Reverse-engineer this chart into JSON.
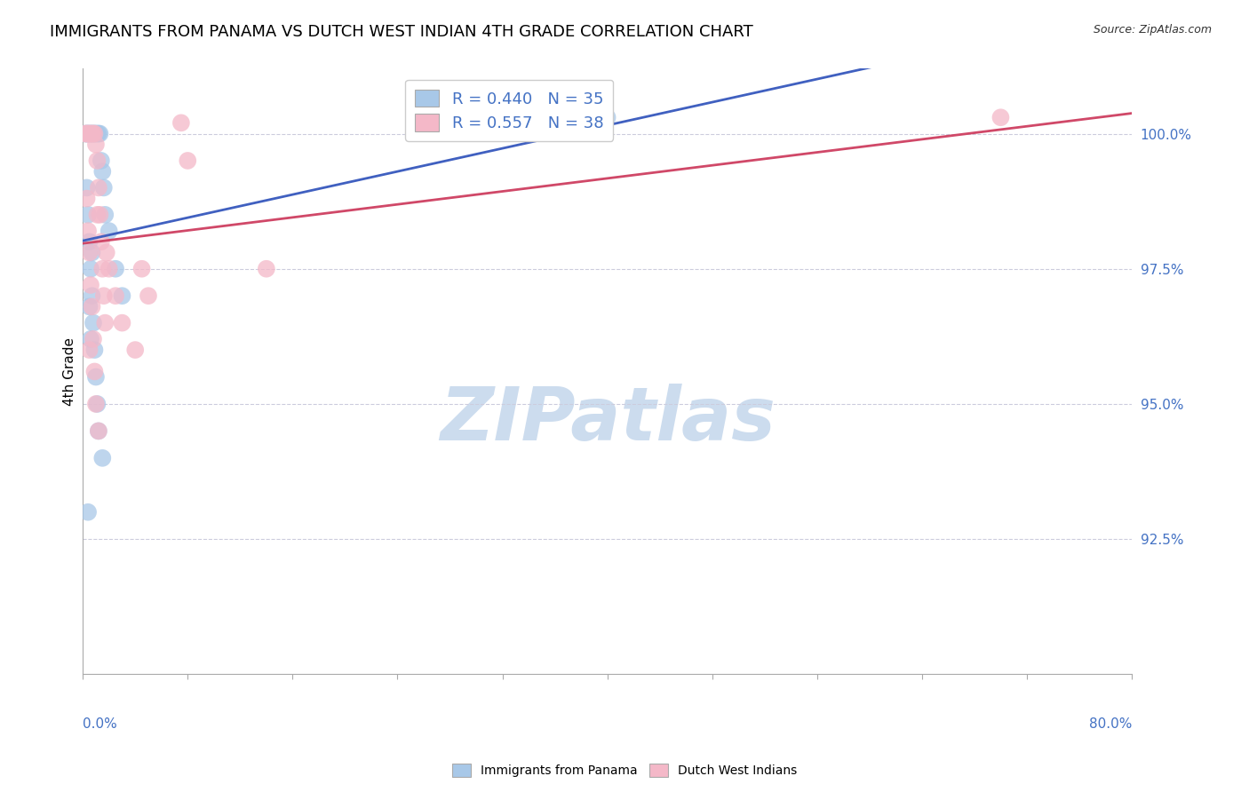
{
  "title": "IMMIGRANTS FROM PANAMA VS DUTCH WEST INDIAN 4TH GRADE CORRELATION CHART",
  "source": "Source: ZipAtlas.com",
  "ylabel": "4th Grade",
  "xlim": [
    0.0,
    80.0
  ],
  "ylim": [
    90.0,
    101.2
  ],
  "yticks": [
    92.5,
    95.0,
    97.5,
    100.0
  ],
  "xticks": [
    0.0,
    8.0,
    16.0,
    24.0,
    32.0,
    40.0,
    48.0,
    56.0,
    64.0,
    72.0,
    80.0
  ],
  "blue_R": 0.44,
  "blue_N": 35,
  "pink_R": 0.557,
  "pink_N": 38,
  "blue_color": "#a8c8e8",
  "pink_color": "#f4b8c8",
  "blue_line_color": "#4060c0",
  "pink_line_color": "#d04868",
  "axis_label_color": "#4472c4",
  "title_color": "#000000",
  "title_fontsize": 13,
  "axis_fontsize": 11,
  "legend_fontsize": 13,
  "watermark_color": "#ccdcee",
  "grid_color": "#ccccdd",
  "background_color": "#ffffff",
  "blue_x": [
    0.2,
    0.3,
    0.4,
    0.5,
    0.6,
    0.7,
    0.8,
    0.9,
    1.0,
    1.1,
    1.2,
    1.3,
    1.4,
    1.5,
    1.6,
    1.7,
    0.3,
    0.4,
    0.5,
    0.6,
    0.7,
    0.8,
    0.9,
    1.0,
    1.1,
    1.2,
    0.5,
    0.6,
    0.7,
    2.0,
    2.5,
    3.0,
    1.5,
    40.0,
    0.4
  ],
  "blue_y": [
    100.0,
    100.0,
    100.0,
    100.0,
    100.0,
    100.0,
    100.0,
    100.0,
    100.0,
    100.0,
    100.0,
    100.0,
    99.5,
    99.3,
    99.0,
    98.5,
    99.0,
    98.5,
    98.0,
    97.5,
    97.0,
    96.5,
    96.0,
    95.5,
    95.0,
    94.5,
    96.8,
    96.2,
    97.8,
    98.2,
    97.5,
    97.0,
    94.0,
    100.3,
    93.0
  ],
  "pink_x": [
    0.2,
    0.3,
    0.4,
    0.5,
    0.6,
    0.7,
    0.8,
    0.9,
    1.0,
    1.1,
    1.2,
    1.3,
    1.4,
    1.5,
    1.6,
    1.7,
    0.3,
    0.4,
    0.5,
    0.6,
    0.7,
    0.8,
    0.9,
    1.0,
    1.1,
    2.0,
    2.5,
    3.0,
    4.0,
    4.5,
    5.0,
    1.8,
    0.5,
    1.2,
    7.5,
    8.0,
    14.0,
    70.0
  ],
  "pink_y": [
    100.0,
    100.0,
    100.0,
    100.0,
    100.0,
    100.0,
    100.0,
    100.0,
    99.8,
    99.5,
    99.0,
    98.5,
    98.0,
    97.5,
    97.0,
    96.5,
    98.8,
    98.2,
    97.8,
    97.2,
    96.8,
    96.2,
    95.6,
    95.0,
    98.5,
    97.5,
    97.0,
    96.5,
    96.0,
    97.5,
    97.0,
    97.8,
    96.0,
    94.5,
    100.2,
    99.5,
    97.5,
    100.3
  ]
}
